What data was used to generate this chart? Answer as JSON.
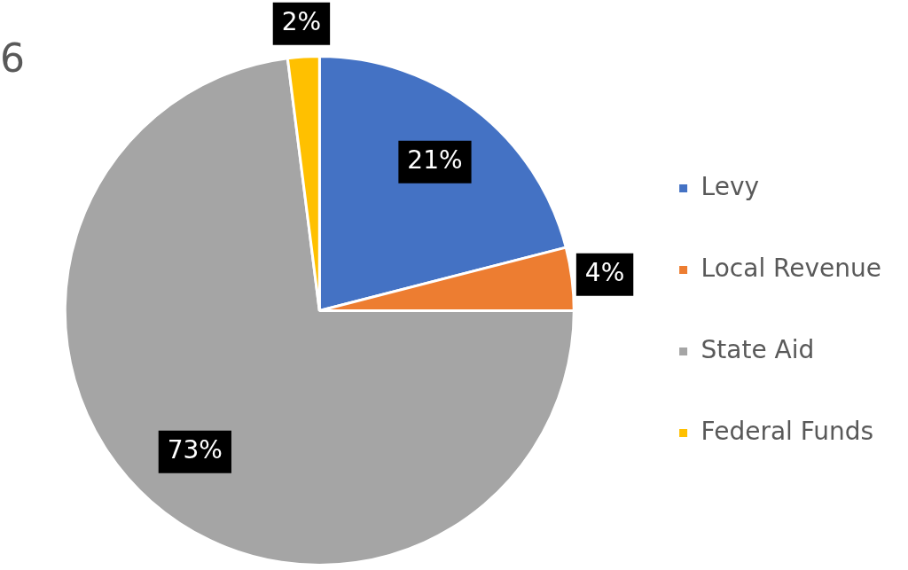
{
  "chart_data": {
    "type": "pie",
    "title": "6",
    "categories": [
      "Levy",
      "Local Revenue",
      "State Aid",
      "Federal Funds"
    ],
    "values": [
      21,
      4,
      73,
      2
    ],
    "colors": [
      "#4472c4",
      "#ed7d31",
      "#a5a5a5",
      "#ffc000"
    ],
    "value_labels": [
      "21%",
      "4%",
      "73%",
      "2%"
    ],
    "legend": "right"
  }
}
